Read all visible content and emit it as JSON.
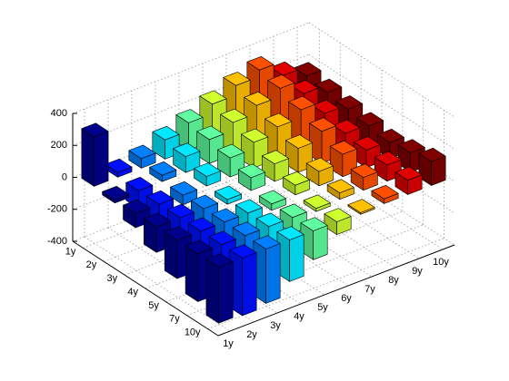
{
  "chart_data": {
    "type": "bar3",
    "categories": [
      "1y",
      "2y",
      "3y",
      "4y",
      "5y",
      "6y",
      "7y",
      "8y",
      "9y",
      "10y"
    ],
    "rows": [
      "1y",
      "2y",
      "3y",
      "4y",
      "5y",
      "7y",
      "10y"
    ],
    "colors": [
      "#00008f",
      "#0010ff",
      "#0080ff",
      "#00e8ff",
      "#60ffa0",
      "#d0ff30",
      "#ffc000",
      "#ff5000",
      "#e00000",
      "#800000"
    ],
    "values": [
      [
        310,
        30,
        60,
        120,
        170,
        230,
        290,
        330,
        240,
        180
      ],
      [
        -20,
        -110,
        40,
        100,
        150,
        200,
        250,
        300,
        210,
        160
      ],
      [
        -90,
        -180,
        -60,
        60,
        120,
        160,
        200,
        250,
        170,
        140
      ],
      [
        -160,
        -220,
        -140,
        -30,
        80,
        110,
        150,
        200,
        130,
        120
      ],
      [
        -240,
        -280,
        -220,
        -110,
        -40,
        60,
        90,
        140,
        110,
        100
      ],
      [
        -300,
        -320,
        -280,
        -200,
        -100,
        -20,
        40,
        80,
        100,
        120
      ],
      [
        -350,
        -360,
        -340,
        -260,
        -180,
        -80,
        -10,
        30,
        90,
        150
      ]
    ],
    "zlim": [
      -400,
      400
    ],
    "zticks": [
      -400,
      -200,
      0,
      200,
      400
    ],
    "grid": true
  }
}
